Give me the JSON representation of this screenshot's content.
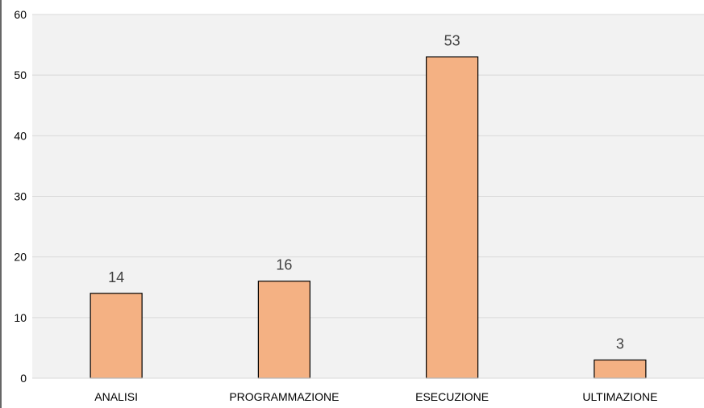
{
  "chart_data": {
    "type": "bar",
    "title": "",
    "xlabel": "",
    "ylabel": "",
    "categories": [
      "ANALISI",
      "PROGRAMMAZIONE",
      "ESECUZIONE",
      "ULTIMAZIONE"
    ],
    "values": [
      14,
      16,
      53,
      3
    ],
    "ylim": [
      0,
      60
    ],
    "yticks": [
      "0",
      "10",
      "20",
      "30",
      "40",
      "50",
      "60"
    ],
    "data_labels": [
      "14",
      "16",
      "53",
      "3"
    ],
    "grid": true,
    "legend": "none",
    "colors": {
      "bar_fill": "#f4b183",
      "bar_stroke": "#000000",
      "plot_background": "#f2f2f2",
      "gridline": "#d9d9d9",
      "axis": "#000000",
      "data_label": "#404040"
    }
  }
}
